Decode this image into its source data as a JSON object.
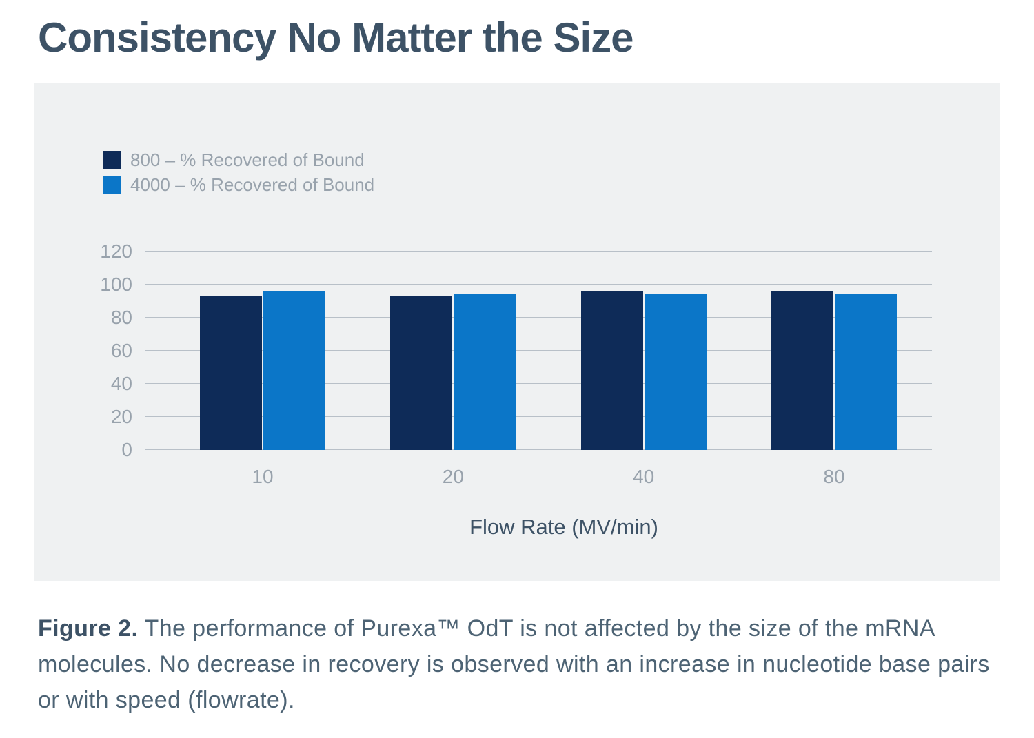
{
  "page": {
    "title": "Consistency No Matter the Size"
  },
  "chart_data": {
    "type": "bar",
    "title": "Consistency No Matter the Size",
    "categories": [
      "10",
      "20",
      "40",
      "80"
    ],
    "series": [
      {
        "name": "800 – % Recovered of Bound",
        "values": [
          93,
          93,
          96,
          96
        ],
        "color": "#0e2b58"
      },
      {
        "name": "4000 – % Recovered of Bound",
        "values": [
          96,
          94,
          94,
          94
        ],
        "color": "#0b76c8"
      }
    ],
    "xlabel": "Flow Rate (MV/min)",
    "ylabel": "",
    "ylim": [
      0,
      120
    ],
    "yticks": [
      0,
      20,
      40,
      60,
      80,
      100,
      120
    ],
    "grid": true,
    "legend_position": "top-left"
  },
  "caption": {
    "label": "Figure 2.",
    "text": " The performance of Purexa™ OdT is not affected by the size of the mRNA molecules. No decrease in recovery is observed with an increase in nucleotide base pairs or with speed (flowrate)."
  },
  "colors": {
    "title_text": "#3d5266",
    "axis_text": "#98a2ac",
    "axis_title_text": "#3d5266",
    "caption_text": "#4d6374",
    "panel_bg": "#eff1f2",
    "gridline": "#b8c0c8",
    "series_800": "#0e2b58",
    "series_4000": "#0b76c8"
  }
}
